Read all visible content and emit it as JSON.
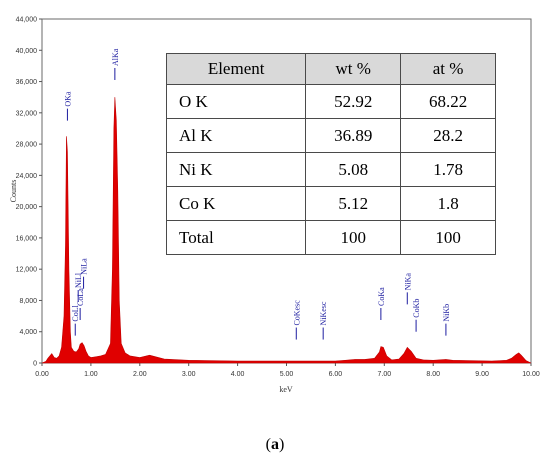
{
  "chart_data": {
    "type": "line",
    "xlabel": "keV",
    "ylabel": "Counts",
    "xlim": [
      0,
      10
    ],
    "ylim": [
      0,
      44000
    ],
    "x_ticks": [
      "0.00",
      "1.00",
      "2.00",
      "3.00",
      "4.00",
      "5.00",
      "6.00",
      "7.00",
      "8.00",
      "9.00",
      "10.00"
    ],
    "y_ticks": [
      "0",
      "4,000",
      "8,000",
      "12,000",
      "16,000",
      "20,000",
      "24,000",
      "28,000",
      "32,000",
      "36,000",
      "40,000",
      "44,000"
    ],
    "series_color": "#e00000",
    "spectrum": {
      "x": [
        0.0,
        0.08,
        0.12,
        0.2,
        0.25,
        0.3,
        0.35,
        0.4,
        0.45,
        0.48,
        0.5,
        0.52,
        0.55,
        0.58,
        0.6,
        0.65,
        0.7,
        0.75,
        0.78,
        0.82,
        0.86,
        0.9,
        0.95,
        1.0,
        1.1,
        1.2,
        1.3,
        1.4,
        1.44,
        1.47,
        1.49,
        1.52,
        1.55,
        1.58,
        1.62,
        1.7,
        1.8,
        2.0,
        2.2,
        2.5,
        3.0,
        3.5,
        4.0,
        4.5,
        5.0,
        5.5,
        6.0,
        6.2,
        6.4,
        6.6,
        6.8,
        6.9,
        6.93,
        6.98,
        7.05,
        7.15,
        7.3,
        7.4,
        7.47,
        7.55,
        7.65,
        7.8,
        8.0,
        8.26,
        8.4,
        8.8,
        9.2,
        9.5,
        9.6,
        9.7,
        9.75,
        9.8,
        9.9,
        10.0
      ],
      "y": [
        0,
        200,
        600,
        1200,
        700,
        600,
        900,
        2000,
        6000,
        15000,
        29000,
        27000,
        12000,
        4000,
        2000,
        1500,
        1400,
        1800,
        2400,
        2600,
        2200,
        1500,
        900,
        700,
        800,
        900,
        1100,
        2500,
        12000,
        30000,
        34000,
        31000,
        22000,
        8000,
        2500,
        1300,
        900,
        700,
        1000,
        500,
        350,
        300,
        250,
        250,
        250,
        250,
        250,
        350,
        450,
        450,
        600,
        1400,
        2100,
        2000,
        900,
        400,
        500,
        1200,
        2000,
        1500,
        600,
        400,
        350,
        450,
        350,
        300,
        250,
        350,
        600,
        1100,
        1300,
        1000,
        300,
        0
      ]
    },
    "peak_labels": [
      {
        "text": "OKa",
        "x": 0.52,
        "y": 31000
      },
      {
        "text": "AlKa",
        "x": 1.49,
        "y": 36200
      },
      {
        "text": "NiLa",
        "x": 0.85,
        "y": 9500
      },
      {
        "text": "NiLl",
        "x": 0.74,
        "y": 7800
      },
      {
        "text": "CoLa",
        "x": 0.78,
        "y": 5500
      },
      {
        "text": "CoLl",
        "x": 0.68,
        "y": 3500
      },
      {
        "text": "CoKesc",
        "x": 5.2,
        "y": 3000
      },
      {
        "text": "NiKesc",
        "x": 5.75,
        "y": 3000
      },
      {
        "text": "CoKa",
        "x": 6.93,
        "y": 5500
      },
      {
        "text": "NiKa",
        "x": 7.47,
        "y": 7500
      },
      {
        "text": "CoKb",
        "x": 7.65,
        "y": 4000
      },
      {
        "text": "NiKb",
        "x": 8.26,
        "y": 3500
      }
    ]
  },
  "table": {
    "headers": [
      "Element",
      "wt %",
      "at %"
    ],
    "rows": [
      [
        "O K",
        "52.92",
        "68.22"
      ],
      [
        "Al K",
        "36.89",
        "28.2"
      ],
      [
        "Ni K",
        "5.08",
        "1.78"
      ],
      [
        "Co K",
        "5.12",
        "1.8"
      ],
      [
        "Total",
        "100",
        "100"
      ]
    ]
  },
  "caption": {
    "open": "(",
    "letter": "a",
    "close": ")"
  }
}
